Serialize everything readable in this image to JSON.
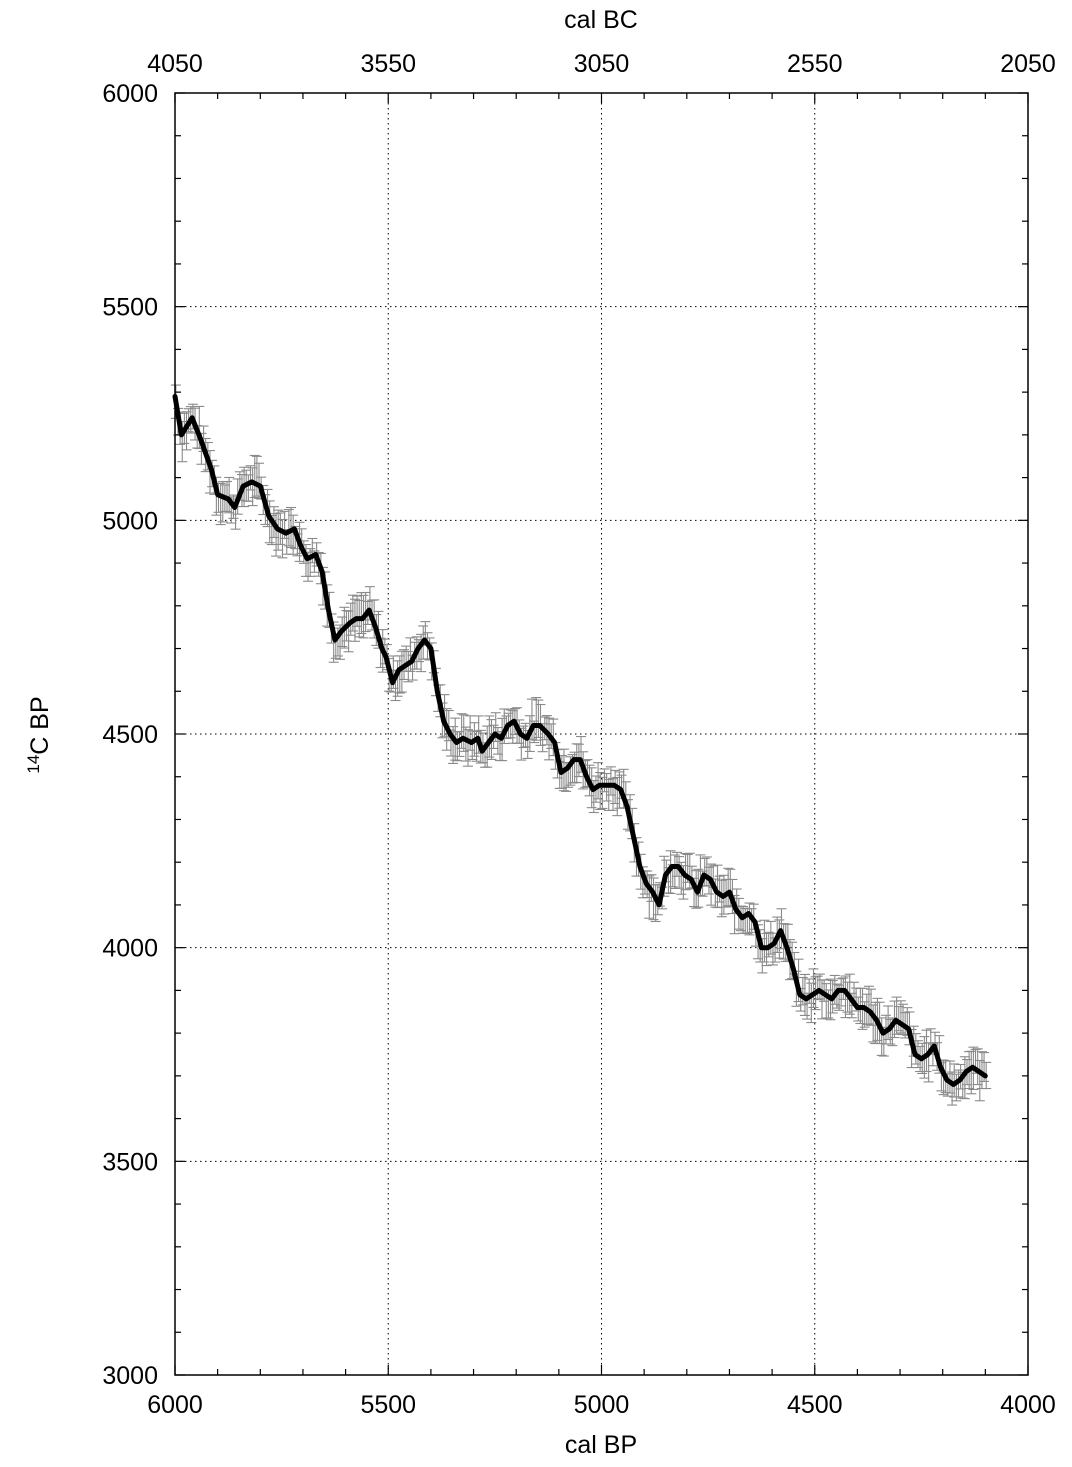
{
  "chart_data": {
    "type": "line",
    "xlabel": "cal BP",
    "x2label": "cal BC",
    "ylabel_sup": "14",
    "ylabel_main": "C BP",
    "xlim": [
      6000,
      4000
    ],
    "ylim": [
      3000,
      6000
    ],
    "x_ticks": [
      6000,
      5500,
      5000,
      4500,
      4000
    ],
    "x2_ticks": [
      4050,
      3550,
      3050,
      2550,
      2050
    ],
    "y_ticks": [
      3000,
      3500,
      4000,
      4500,
      5000,
      5500,
      6000
    ],
    "x_tick_labels": [
      "6000",
      "5500",
      "5000",
      "4500",
      "4000"
    ],
    "x2_tick_labels": [
      "4050",
      "3550",
      "3050",
      "2550",
      "2050"
    ],
    "y_tick_labels": [
      "3000",
      "3500",
      "4000",
      "4500",
      "5000",
      "5500",
      "6000"
    ],
    "grid": true,
    "series": [
      {
        "style": "calibration-curve-band",
        "color": "#000000",
        "points": [
          [
            6000,
            5290
          ],
          [
            5985,
            5200
          ],
          [
            5960,
            5240
          ],
          [
            5940,
            5190
          ],
          [
            5915,
            5120
          ],
          [
            5900,
            5060
          ],
          [
            5875,
            5050
          ],
          [
            5860,
            5030
          ],
          [
            5840,
            5080
          ],
          [
            5820,
            5090
          ],
          [
            5800,
            5080
          ],
          [
            5780,
            5010
          ],
          [
            5760,
            4980
          ],
          [
            5740,
            4970
          ],
          [
            5720,
            4980
          ],
          [
            5705,
            4940
          ],
          [
            5690,
            4910
          ],
          [
            5670,
            4920
          ],
          [
            5655,
            4880
          ],
          [
            5640,
            4790
          ],
          [
            5625,
            4720
          ],
          [
            5610,
            4740
          ],
          [
            5590,
            4760
          ],
          [
            5575,
            4770
          ],
          [
            5560,
            4770
          ],
          [
            5545,
            4790
          ],
          [
            5530,
            4750
          ],
          [
            5515,
            4700
          ],
          [
            5505,
            4680
          ],
          [
            5490,
            4620
          ],
          [
            5475,
            4650
          ],
          [
            5460,
            4660
          ],
          [
            5445,
            4670
          ],
          [
            5430,
            4700
          ],
          [
            5415,
            4720
          ],
          [
            5400,
            4700
          ],
          [
            5385,
            4600
          ],
          [
            5370,
            4530
          ],
          [
            5355,
            4500
          ],
          [
            5340,
            4480
          ],
          [
            5325,
            4490
          ],
          [
            5305,
            4480
          ],
          [
            5290,
            4490
          ],
          [
            5280,
            4460
          ],
          [
            5265,
            4480
          ],
          [
            5250,
            4500
          ],
          [
            5235,
            4490
          ],
          [
            5220,
            4520
          ],
          [
            5205,
            4530
          ],
          [
            5190,
            4500
          ],
          [
            5175,
            4490
          ],
          [
            5160,
            4520
          ],
          [
            5145,
            4520
          ],
          [
            5125,
            4500
          ],
          [
            5110,
            4480
          ],
          [
            5095,
            4410
          ],
          [
            5080,
            4420
          ],
          [
            5065,
            4440
          ],
          [
            5050,
            4440
          ],
          [
            5035,
            4400
          ],
          [
            5020,
            4370
          ],
          [
            5005,
            4380
          ],
          [
            4990,
            4380
          ],
          [
            4970,
            4380
          ],
          [
            4955,
            4370
          ],
          [
            4940,
            4330
          ],
          [
            4925,
            4260
          ],
          [
            4910,
            4190
          ],
          [
            4895,
            4150
          ],
          [
            4880,
            4130
          ],
          [
            4865,
            4100
          ],
          [
            4850,
            4170
          ],
          [
            4835,
            4190
          ],
          [
            4820,
            4190
          ],
          [
            4805,
            4170
          ],
          [
            4790,
            4160
          ],
          [
            4775,
            4130
          ],
          [
            4760,
            4170
          ],
          [
            4745,
            4160
          ],
          [
            4730,
            4130
          ],
          [
            4715,
            4120
          ],
          [
            4700,
            4130
          ],
          [
            4685,
            4090
          ],
          [
            4670,
            4070
          ],
          [
            4655,
            4080
          ],
          [
            4640,
            4060
          ],
          [
            4625,
            4000
          ],
          [
            4610,
            4000
          ],
          [
            4595,
            4010
          ],
          [
            4580,
            4040
          ],
          [
            4565,
            4000
          ],
          [
            4550,
            3950
          ],
          [
            4535,
            3890
          ],
          [
            4520,
            3880
          ],
          [
            4505,
            3890
          ],
          [
            4490,
            3900
          ],
          [
            4475,
            3890
          ],
          [
            4460,
            3880
          ],
          [
            4445,
            3900
          ],
          [
            4430,
            3900
          ],
          [
            4415,
            3880
          ],
          [
            4400,
            3860
          ],
          [
            4385,
            3860
          ],
          [
            4370,
            3850
          ],
          [
            4355,
            3830
          ],
          [
            4340,
            3800
          ],
          [
            4325,
            3810
          ],
          [
            4310,
            3830
          ],
          [
            4295,
            3820
          ],
          [
            4280,
            3810
          ],
          [
            4265,
            3750
          ],
          [
            4250,
            3740
          ],
          [
            4235,
            3750
          ],
          [
            4220,
            3770
          ],
          [
            4205,
            3720
          ],
          [
            4190,
            3690
          ],
          [
            4175,
            3680
          ],
          [
            4160,
            3690
          ],
          [
            4145,
            3710
          ],
          [
            4130,
            3720
          ],
          [
            4115,
            3710
          ],
          [
            4100,
            3700
          ]
        ]
      }
    ]
  }
}
